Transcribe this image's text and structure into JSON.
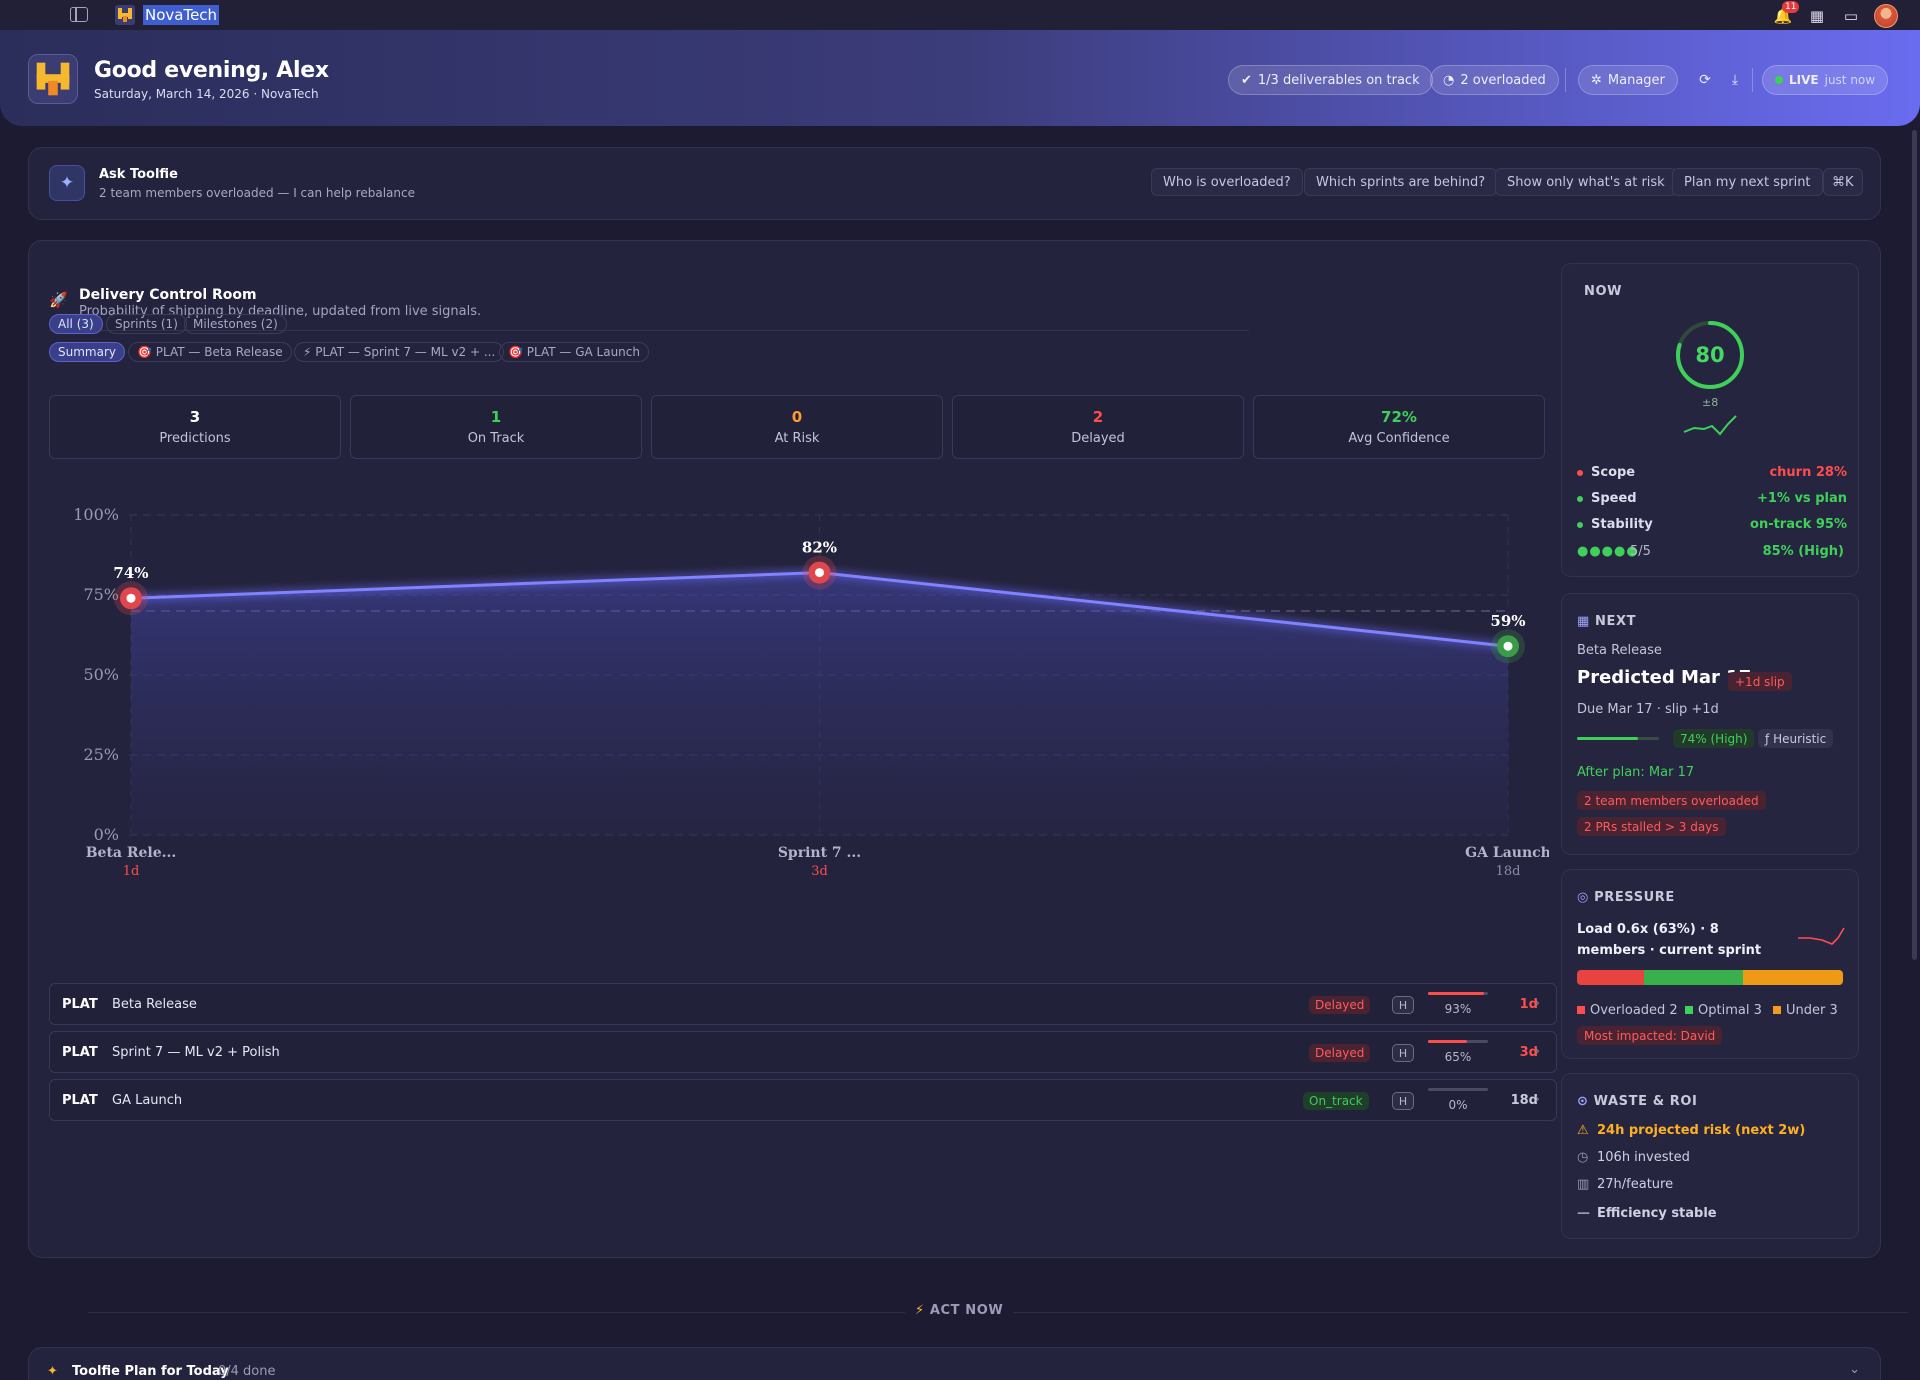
{
  "topbar": {
    "brand": "NovaTech",
    "notification_count": "11"
  },
  "header": {
    "greeting": "Good evening, Alex",
    "subtitle": "Saturday, March 14, 2026 · NovaTech",
    "deliverables_pill": "1/3 deliverables on track",
    "overloaded_pill": "2 overloaded",
    "role_pill": "Manager",
    "live_label": "LIVE",
    "live_time": "just now"
  },
  "ask": {
    "title": "Ask Toolfie",
    "subtitle": "2 team members overloaded — I can help rebalance",
    "suggestions": [
      "Who is overloaded?",
      "Which sprints are behind?",
      "Show only what's at risk",
      "Plan my next sprint"
    ],
    "shortcut": "⌘K"
  },
  "delivery": {
    "title": "Delivery Control Room",
    "subtitle": "Probability of shipping by deadline, updated from live signals.",
    "filters": [
      "All (3)",
      "Sprints (1)",
      "Milestones (2)"
    ],
    "views": [
      "Summary",
      "PLAT — Beta Release",
      "PLAT — Sprint 7 — ML v2 + ...",
      "PLAT — GA Launch"
    ],
    "stats": [
      {
        "value": "3",
        "label": "Predictions",
        "color": "#ffffff"
      },
      {
        "value": "1",
        "label": "On Track",
        "color": "#3fd05a"
      },
      {
        "value": "0",
        "label": "At Risk",
        "color": "#ff9b2f"
      },
      {
        "value": "2",
        "label": "Delayed",
        "color": "#ff4d4d"
      },
      {
        "value": "72%",
        "label": "Avg Confidence",
        "color": "#3fd05a"
      }
    ],
    "rows": [
      {
        "project": "PLAT",
        "name": "Beta Release",
        "status": "Delayed",
        "confidence_tag": "H",
        "progress": 93,
        "progress_label": "93%",
        "days": "1d",
        "days_color": "#ff4d4d"
      },
      {
        "project": "PLAT",
        "name": "Sprint 7 — ML v2 + Polish",
        "status": "Delayed",
        "confidence_tag": "H",
        "progress": 65,
        "progress_label": "65%",
        "days": "3d",
        "days_color": "#ff4d4d"
      },
      {
        "project": "PLAT",
        "name": "GA Launch",
        "status": "On_track",
        "confidence_tag": "H",
        "progress": 0,
        "progress_label": "0%",
        "days": "18d",
        "days_color": "#c9c9dd"
      }
    ]
  },
  "chart_data": {
    "type": "line",
    "categories": [
      "Beta Rele...",
      "Sprint 7 ...",
      "GA Launch"
    ],
    "sublabels": [
      "1d",
      "3d",
      "18d"
    ],
    "series": [
      {
        "values": [
          74,
          82,
          59
        ]
      }
    ],
    "data_labels": [
      "74%",
      "82%",
      "59%"
    ],
    "point_colors": [
      "#e0474c",
      "#e0474c",
      "#3a9b48"
    ],
    "sublabel_colors": [
      "#ff4d4d",
      "#ff4d4d",
      "#8a8aa6"
    ],
    "yticks": [
      "0%",
      "25%",
      "50%",
      "75%",
      "100%"
    ],
    "ylim": [
      0,
      100
    ],
    "reference_line": 70,
    "grid": true
  },
  "now": {
    "label": "NOW",
    "score": "80",
    "delta": "±8",
    "score_value": 80,
    "metrics": [
      {
        "name": "Scope",
        "value": "churn 28%",
        "dot": "#ff4d4d",
        "color": "#ff4d4d"
      },
      {
        "name": "Speed",
        "value": "+1% vs plan",
        "dot": "#3fd05a",
        "color": "#3fd05a"
      },
      {
        "name": "Stability",
        "value": "on-track 95%",
        "dot": "#3fd05a",
        "color": "#3fd05a"
      }
    ],
    "dots_label": "5/5",
    "confidence": "85% (High)"
  },
  "next": {
    "label": "NEXT",
    "item": "Beta Release",
    "predicted": "Predicted Mar 17",
    "slip": "+1d slip",
    "due": "Due Mar 17 · slip +1d",
    "confidence": "74% (High)",
    "confidence_value": 74,
    "method": "Heuristic",
    "after_plan": "After plan: Mar 17",
    "risks": [
      "2 team members overloaded",
      "2 PRs stalled > 3 days"
    ]
  },
  "pressure": {
    "label": "PRESSURE",
    "summary": "Load 0.6x (63%) · 8 members · current sprint",
    "overloaded_count": 2,
    "optimal_count": 3,
    "under_count": 3,
    "legend": [
      "Overloaded 2",
      "Optimal 3",
      "Under 3"
    ],
    "most_impacted": "Most impacted: David"
  },
  "waste": {
    "label": "WASTE & ROI",
    "risk": "24h projected risk (next 2w)",
    "invested": "106h invested",
    "per_feature": "27h/feature",
    "efficiency": "Efficiency stable"
  },
  "act_now": "ACT NOW",
  "plan": {
    "title": "Toolfie Plan for Today",
    "progress": "0/4 done"
  }
}
